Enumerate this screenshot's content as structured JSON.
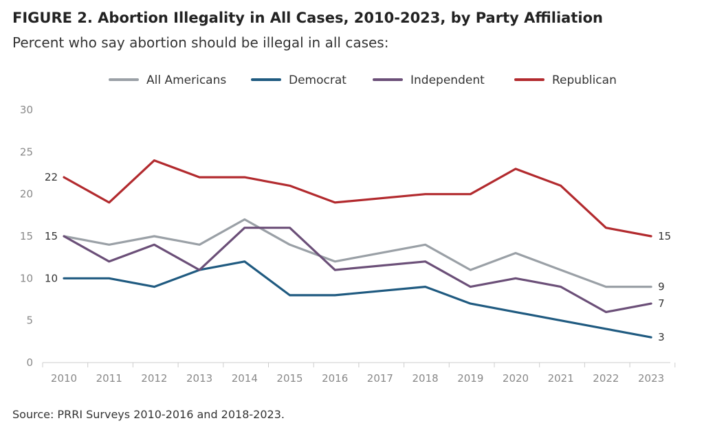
{
  "figure": {
    "title": "FIGURE 2. Abortion Illegality in All Cases, 2010-2023, by Party Affiliation",
    "subtitle": "Percent who say abortion should be illegal in all cases:",
    "source": "Source: PRRI Surveys 2010-2016 and 2018-2023."
  },
  "chart_data": {
    "type": "line",
    "title": "FIGURE 2. Abortion Illegality in All Cases, 2010-2023, by Party Affiliation",
    "subtitle": "Percent who say abortion should be illegal in all cases:",
    "x_ticks": [
      "2010",
      "2011",
      "2012",
      "2013",
      "2014",
      "2015",
      "2016",
      "2017",
      "2018",
      "2019",
      "2020",
      "2021",
      "2022",
      "2023"
    ],
    "y_ticks": [
      "0",
      "5",
      "10",
      "15",
      "20",
      "25",
      "30"
    ],
    "ylim": [
      0,
      30
    ],
    "legend_position": "top",
    "grid": false,
    "series": [
      {
        "name": "All Americans",
        "color": "#9aa0a6",
        "points": [
          [
            2010,
            15
          ],
          [
            2011,
            14
          ],
          [
            2012,
            15
          ],
          [
            2013,
            14
          ],
          [
            2014,
            17
          ],
          [
            2015,
            14
          ],
          [
            2016,
            12
          ],
          [
            2018,
            14
          ],
          [
            2019,
            11
          ],
          [
            2020,
            13
          ],
          [
            2021,
            11
          ],
          [
            2022,
            9
          ],
          [
            2023,
            9
          ]
        ],
        "end_label": "9"
      },
      {
        "name": "Democrat",
        "color": "#1f5a80",
        "points": [
          [
            2010,
            10
          ],
          [
            2011,
            10
          ],
          [
            2012,
            9
          ],
          [
            2013,
            11
          ],
          [
            2014,
            12
          ],
          [
            2015,
            8
          ],
          [
            2016,
            8
          ],
          [
            2018,
            9
          ],
          [
            2019,
            7
          ],
          [
            2020,
            6
          ],
          [
            2021,
            5
          ],
          [
            2022,
            4
          ],
          [
            2023,
            3
          ]
        ],
        "start_label": "10",
        "end_label": "3"
      },
      {
        "name": "Independent",
        "color": "#6b4f78",
        "points": [
          [
            2010,
            15
          ],
          [
            2011,
            12
          ],
          [
            2012,
            14
          ],
          [
            2013,
            11
          ],
          [
            2014,
            16
          ],
          [
            2015,
            16
          ],
          [
            2016,
            11
          ],
          [
            2018,
            12
          ],
          [
            2019,
            9
          ],
          [
            2020,
            10
          ],
          [
            2021,
            9
          ],
          [
            2022,
            6
          ],
          [
            2023,
            7
          ]
        ],
        "start_label": "15",
        "end_label": "7"
      },
      {
        "name": "Republican",
        "color": "#b22a2e",
        "points": [
          [
            2010,
            22
          ],
          [
            2011,
            19
          ],
          [
            2012,
            24
          ],
          [
            2013,
            22
          ],
          [
            2014,
            22
          ],
          [
            2015,
            21
          ],
          [
            2016,
            19
          ],
          [
            2018,
            20
          ],
          [
            2019,
            20
          ],
          [
            2020,
            23
          ],
          [
            2021,
            21
          ],
          [
            2022,
            16
          ],
          [
            2023,
            15
          ]
        ],
        "start_label": "22",
        "end_label": "15"
      }
    ]
  }
}
